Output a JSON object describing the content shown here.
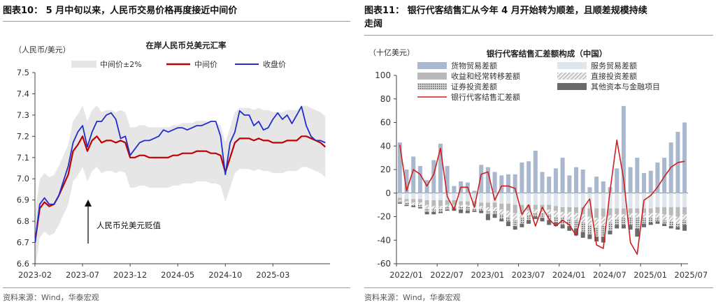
{
  "left": {
    "figure_title": "图表10：  5 月中旬以来，人民币交易价格再度接近中间价",
    "source": "资料来源：Wind，华泰宏观",
    "chart_data": {
      "type": "line",
      "title": "在岸人民币兑美元汇率",
      "ylabel": "（人民币/美元）",
      "ylim": [
        6.6,
        7.5
      ],
      "yticks": [
        "6.6",
        "6.7",
        "6.8",
        "6.9",
        "7.0",
        "7.1",
        "7.2",
        "7.3",
        "7.4",
        "7.5"
      ],
      "xlim": [
        0,
        31
      ],
      "xticks": [
        {
          "x": 0,
          "label": "2023-02"
        },
        {
          "x": 5,
          "label": "2023-07"
        },
        {
          "x": 10,
          "label": "2023-12"
        },
        {
          "x": 15,
          "label": "2024-05"
        },
        {
          "x": 20,
          "label": "2024-10"
        },
        {
          "x": 25,
          "label": "2025-03"
        }
      ],
      "annotation": "人民币兑美元贬值",
      "legend": [
        "中间价±2%",
        "中间价",
        "收盘价"
      ],
      "colors": {
        "band": "#e6e6e6",
        "mid": "#c00000",
        "close": "#1f2ecc"
      },
      "x": [
        0,
        0.5,
        1,
        1.5,
        2,
        2.5,
        3,
        3.5,
        4,
        4.5,
        5,
        5.5,
        6,
        6.5,
        7,
        7.5,
        8,
        8.5,
        9,
        9.5,
        10,
        10.5,
        11,
        11.5,
        12,
        12.5,
        13,
        13.5,
        14,
        14.5,
        15,
        15.5,
        16,
        16.5,
        17,
        17.5,
        18,
        18.5,
        19,
        19.5,
        20,
        20.5,
        21,
        21.5,
        22,
        22.5,
        23,
        23.5,
        24,
        24.5,
        25,
        25.5,
        26,
        26.5,
        27,
        27.5,
        28,
        28.5,
        29,
        29.5,
        30,
        30.5
      ],
      "series": [
        {
          "name": "中间价",
          "values": [
            6.7,
            6.86,
            6.89,
            6.87,
            6.88,
            6.92,
            6.97,
            7.02,
            7.13,
            7.16,
            7.2,
            7.13,
            7.18,
            7.2,
            7.17,
            7.18,
            7.18,
            7.17,
            7.18,
            7.17,
            7.1,
            7.1,
            7.11,
            7.11,
            7.1,
            7.1,
            7.1,
            7.1,
            7.1,
            7.11,
            7.11,
            7.12,
            7.12,
            7.12,
            7.13,
            7.13,
            7.13,
            7.12,
            7.12,
            7.11,
            7.03,
            7.1,
            7.17,
            7.19,
            7.19,
            7.19,
            7.18,
            7.19,
            7.18,
            7.18,
            7.17,
            7.17,
            7.17,
            7.18,
            7.18,
            7.18,
            7.2,
            7.2,
            7.19,
            7.18,
            7.17,
            7.15
          ]
        },
        {
          "name": "收盘价",
          "values": [
            6.7,
            6.88,
            6.91,
            6.88,
            6.88,
            6.92,
            6.99,
            7.06,
            7.17,
            7.22,
            7.25,
            7.15,
            7.22,
            7.27,
            7.27,
            7.3,
            7.31,
            7.28,
            7.19,
            7.2,
            7.11,
            7.14,
            7.17,
            7.18,
            7.18,
            7.19,
            7.2,
            7.23,
            7.22,
            7.23,
            7.24,
            7.24,
            7.23,
            7.24,
            7.25,
            7.25,
            7.26,
            7.27,
            7.27,
            7.2,
            7.02,
            7.17,
            7.22,
            7.32,
            7.3,
            7.3,
            7.25,
            7.27,
            7.23,
            7.24,
            7.28,
            7.31,
            7.28,
            7.3,
            7.26,
            7.3,
            7.34,
            7.25,
            7.2,
            7.18,
            7.18,
            7.17
          ]
        }
      ]
    }
  },
  "right": {
    "figure_title_line1": "图表11：  银行代客结售汇从今年  4  月开始转为顺差，且顺差规模持续",
    "figure_title_line2": "走阔",
    "source": "资料来源：Wind，华泰宏观",
    "chart_data": {
      "type": "bar",
      "title": "银行代客结售汇差额构成（中国）",
      "ylabel": "（十亿美元）",
      "ylim": [
        -60,
        100
      ],
      "yticks": [
        "-60",
        "-40",
        "-20",
        "0",
        "20",
        "40",
        "60",
        "80",
        "100"
      ],
      "xticks": [
        {
          "i": 0,
          "label": "2022/01"
        },
        {
          "i": 6,
          "label": "2022/07"
        },
        {
          "i": 12,
          "label": "2023/01"
        },
        {
          "i": 18,
          "label": "2023/07"
        },
        {
          "i": 24,
          "label": "2024/01"
        },
        {
          "i": 30,
          "label": "2024/07"
        },
        {
          "i": 36,
          "label": "2025/01"
        },
        {
          "i": 42,
          "label": "2025/07"
        }
      ],
      "legend": [
        "货物贸易差额",
        "服务贸易差额",
        "收益和经常转移差额",
        "直接投资差额",
        "证券投资差额",
        "其他资本与金融项目",
        "银行代客结售汇差额"
      ],
      "colors": {
        "goods": "#a9b8cf",
        "services": "#dfe5ed",
        "income": "#b9b9b9",
        "fdi": "#d0d0d0",
        "portfolio": "#9a9a9a",
        "other": "#6a6a6a",
        "net": "#cc1f1f"
      },
      "categories": [
        "2022/01",
        "2022/02",
        "2022/03",
        "2022/04",
        "2022/05",
        "2022/06",
        "2022/07",
        "2022/08",
        "2022/09",
        "2022/10",
        "2022/11",
        "2022/12",
        "2023/01",
        "2023/02",
        "2023/03",
        "2023/04",
        "2023/05",
        "2023/06",
        "2023/07",
        "2023/08",
        "2023/09",
        "2023/10",
        "2023/11",
        "2023/12",
        "2024/01",
        "2024/02",
        "2024/03",
        "2024/04",
        "2024/05",
        "2024/06",
        "2024/07",
        "2024/08",
        "2024/09",
        "2024/10",
        "2024/11",
        "2024/12",
        "2025/01",
        "2025/02",
        "2025/03",
        "2025/04",
        "2025/05",
        "2025/06",
        "2025/07"
      ],
      "series": [
        {
          "name": "货物贸易差额",
          "values": [
            43,
            20,
            31,
            23,
            11,
            28,
            42,
            23,
            6,
            10,
            9,
            2,
            24,
            22,
            18,
            15,
            16,
            16,
            26,
            27,
            36,
            18,
            14,
            21,
            30,
            15,
            22,
            20,
            5,
            14,
            10,
            5,
            21,
            74,
            22,
            30,
            17,
            19,
            26,
            30,
            43,
            52,
            60
          ]
        },
        {
          "name": "服务贸易差额",
          "values": [
            -4,
            -5,
            -5,
            -5,
            -6,
            -6,
            -6,
            -6,
            -6,
            -7,
            -7,
            -7,
            -8,
            -8,
            -8,
            -9,
            -9,
            -10,
            -10,
            -10,
            -10,
            -10,
            -10,
            -11,
            -12,
            -12,
            -12,
            -12,
            -13,
            -13,
            -13,
            -13,
            -13,
            -13,
            -13,
            -13,
            -13,
            -13,
            -12,
            -12,
            -12,
            -12,
            -12
          ]
        },
        {
          "name": "收益和经常转移差额",
          "values": [
            -2,
            -2,
            -3,
            -3,
            -4,
            -5,
            -5,
            -4,
            -4,
            -3,
            -3,
            -3,
            -3,
            -4,
            -4,
            -5,
            -6,
            -7,
            -6,
            -5,
            -4,
            -4,
            -4,
            -4,
            -4,
            -4,
            -5,
            -6,
            -7,
            -8,
            -7,
            -6,
            -5,
            -5,
            -4,
            -4,
            -4,
            -4,
            -5,
            -6,
            -7,
            -8,
            -6
          ]
        },
        {
          "name": "直接投资差额",
          "values": [
            -1,
            -1,
            -2,
            -2,
            -3,
            -3,
            -2,
            -2,
            -1,
            -2,
            -2,
            -3,
            -2,
            -3,
            -3,
            -4,
            -5,
            -6,
            -5,
            -4,
            -3,
            -3,
            -4,
            -5,
            -5,
            -6,
            -6,
            -7,
            -7,
            -8,
            -8,
            -6,
            -4,
            -3,
            -3,
            -4,
            -4,
            -4,
            -4,
            -5,
            -5,
            -6,
            -5
          ]
        },
        {
          "name": "证券投资差额",
          "values": [
            -1,
            -2,
            -1,
            -2,
            -3,
            -2,
            -3,
            -2,
            -2,
            -2,
            -3,
            -2,
            -2,
            -3,
            -3,
            -4,
            -4,
            -5,
            -5,
            -4,
            -3,
            -4,
            -5,
            -5,
            -6,
            -6,
            -7,
            -8,
            -8,
            -8,
            -9,
            -7,
            -5,
            -6,
            -7,
            -9,
            -5,
            -4,
            -3,
            -3,
            -4,
            -3,
            -4
          ]
        },
        {
          "name": "其他资本与金融项目",
          "values": [
            -1,
            -1,
            -1,
            -1,
            -2,
            -2,
            -1,
            -1,
            -2,
            -3,
            -2,
            -1,
            -2,
            -5,
            -3,
            -2,
            -4,
            -3,
            -3,
            -3,
            -2,
            -3,
            -4,
            -3,
            -3,
            -4,
            -6,
            -5,
            -4,
            -4,
            -5,
            -3,
            -3,
            -3,
            -4,
            -7,
            -3,
            -2,
            -2,
            -2,
            -2,
            -2,
            -5
          ]
        },
        {
          "name": "银行代客结售汇差额",
          "values": [
            41,
            2,
            20,
            16,
            6,
            16,
            38,
            -3,
            -14,
            5,
            5,
            -12,
            16,
            18,
            -6,
            6,
            6,
            4,
            -18,
            -10,
            -28,
            -12,
            -22,
            -28,
            -23,
            -27,
            -36,
            -13,
            -5,
            -44,
            -47,
            2,
            45,
            12,
            -42,
            -52,
            -6,
            -2,
            5,
            14,
            22,
            26,
            27
          ]
        }
      ]
    }
  }
}
